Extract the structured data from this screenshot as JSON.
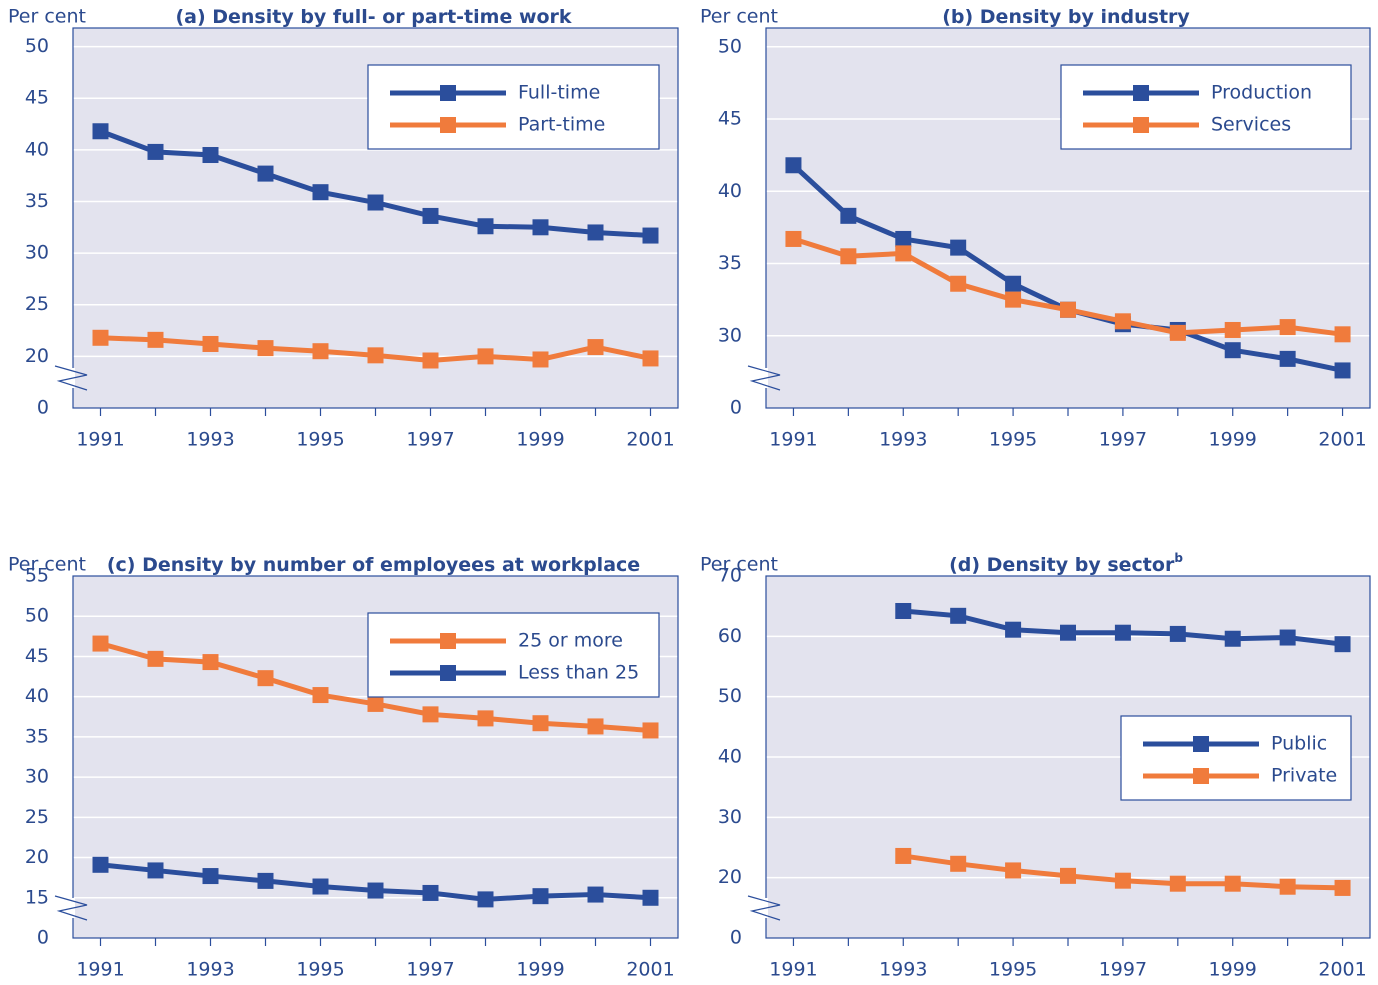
{
  "chart_data": [
    {
      "type": "line",
      "title": "(a) Density by full- or part-time work",
      "y_label": "Per cent",
      "x": [
        1991,
        1992,
        1993,
        1994,
        1995,
        1996,
        1997,
        1998,
        1999,
        2000,
        2001
      ],
      "xlim": [
        1990.5,
        2001.5
      ],
      "xticks": [
        1991,
        1993,
        1995,
        1997,
        1999,
        2001
      ],
      "ylim": [
        0,
        51.8
      ],
      "y_break": [
        0,
        15
      ],
      "yticks": [
        0,
        20,
        25,
        30,
        35,
        40,
        45,
        50
      ],
      "grid": true,
      "legend": "upper right",
      "series": [
        {
          "name": "Full-time",
          "color": "#2b4e9c",
          "values": [
            41.8,
            39.8,
            39.5,
            37.7,
            35.9,
            34.9,
            33.6,
            32.6,
            32.5,
            32.0,
            31.7
          ]
        },
        {
          "name": "Part-time",
          "color": "#f07b3c",
          "values": [
            21.8,
            21.6,
            21.2,
            20.8,
            20.5,
            20.1,
            19.6,
            20.0,
            19.7,
            20.9,
            19.8
          ]
        }
      ]
    },
    {
      "type": "line",
      "title": "(b) Density by industry",
      "y_label": "Per cent",
      "x": [
        1991,
        1992,
        1993,
        1994,
        1995,
        1996,
        1997,
        1998,
        1999,
        2000,
        2001
      ],
      "xlim": [
        1990.5,
        2001.5
      ],
      "xticks": [
        1991,
        1993,
        1995,
        1997,
        1999,
        2001
      ],
      "ylim": [
        0,
        51.3
      ],
      "y_break": [
        0,
        25
      ],
      "yticks": [
        0,
        30,
        35,
        40,
        45,
        50
      ],
      "grid": true,
      "legend": "upper right",
      "series": [
        {
          "name": "Production",
          "color": "#2b4e9c",
          "values": [
            41.8,
            38.3,
            36.7,
            36.1,
            33.6,
            31.8,
            30.8,
            30.4,
            29.0,
            28.4,
            27.6
          ]
        },
        {
          "name": "Services",
          "color": "#f07b3c",
          "values": [
            36.7,
            35.5,
            35.7,
            33.6,
            32.5,
            31.8,
            31.0,
            30.2,
            30.4,
            30.6,
            30.1
          ]
        }
      ]
    },
    {
      "type": "line",
      "title": "(c) Density by number of employees at workplace",
      "y_label": "Per cent",
      "x": [
        1991,
        1992,
        1993,
        1994,
        1995,
        1996,
        1997,
        1998,
        1999,
        2000,
        2001
      ],
      "xlim": [
        1990.5,
        2001.5
      ],
      "xticks": [
        1991,
        1993,
        1995,
        1997,
        1999,
        2001
      ],
      "ylim": [
        0,
        55
      ],
      "y_break": [
        0,
        10
      ],
      "yticks": [
        0,
        15,
        20,
        25,
        30,
        35,
        40,
        45,
        50,
        55
      ],
      "grid": true,
      "legend": "upper right",
      "series": [
        {
          "name": "25 or more",
          "color": "#f07b3c",
          "values": [
            46.6,
            44.7,
            44.3,
            42.3,
            40.2,
            39.1,
            37.8,
            37.3,
            36.7,
            36.3,
            35.8
          ]
        },
        {
          "name": "Less than 25",
          "color": "#2b4e9c",
          "values": [
            19.1,
            18.4,
            17.7,
            17.1,
            16.4,
            15.9,
            15.6,
            14.8,
            15.2,
            15.4,
            15.0
          ]
        }
      ]
    },
    {
      "type": "line",
      "title": "(d) Density by sector",
      "title_note": "b",
      "y_label": "Per cent",
      "x": [
        1991,
        1992,
        1993,
        1994,
        1995,
        1996,
        1997,
        1998,
        1999,
        2000,
        2001
      ],
      "xlim": [
        1990.5,
        2001.5
      ],
      "xticks": [
        1991,
        1993,
        1995,
        1997,
        1999,
        2001
      ],
      "ylim": [
        0,
        70
      ],
      "y_break": [
        0,
        10
      ],
      "yticks": [
        0,
        20,
        30,
        40,
        50,
        60,
        70
      ],
      "grid": true,
      "legend": "center right",
      "series": [
        {
          "name": "Public",
          "color": "#2b4e9c",
          "values": [
            null,
            null,
            64.2,
            63.4,
            61.1,
            60.6,
            60.6,
            60.4,
            59.6,
            59.8,
            58.7
          ]
        },
        {
          "name": "Private",
          "color": "#f07b3c",
          "values": [
            null,
            null,
            23.6,
            22.3,
            21.2,
            20.3,
            19.5,
            19.0,
            19.0,
            18.5,
            18.3
          ]
        }
      ]
    }
  ]
}
